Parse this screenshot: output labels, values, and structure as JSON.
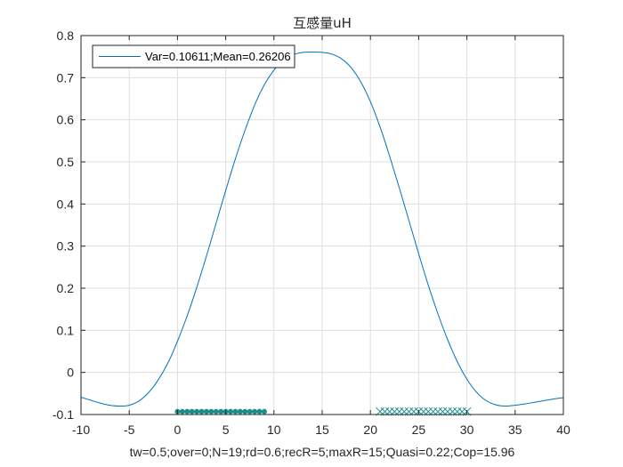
{
  "chart_data": {
    "type": "line",
    "title": "互感量uH",
    "xlabel": "tw=0.5;over=0;N=19;rd=0.6;recR=5;maxR=15;Quasi=0.22;Cop=15.96",
    "ylabel": "",
    "xlim": [
      -10,
      40
    ],
    "ylim": [
      -0.1,
      0.8
    ],
    "xticks": [
      "-10",
      "-5",
      "0",
      "5",
      "10",
      "15",
      "20",
      "25",
      "30",
      "35",
      "40"
    ],
    "yticks": [
      "-0.1",
      "0",
      "0.1",
      "0.2",
      "0.3",
      "0.4",
      "0.5",
      "0.6",
      "0.7",
      "0.8"
    ],
    "grid": true,
    "legend_position": "top-left",
    "series": [
      {
        "name": "Var=0.10611;Mean=0.26206",
        "color": "#0072BD",
        "x": [
          -10,
          -9,
          -8,
          -7,
          -6,
          -5,
          -4,
          -3,
          -2,
          -1,
          0,
          1,
          2,
          3,
          4,
          5,
          6,
          7,
          8,
          9,
          10,
          11,
          12,
          13,
          14,
          15,
          16,
          17,
          18,
          19,
          20,
          21,
          22,
          23,
          24,
          25,
          26,
          27,
          28,
          29,
          30,
          31,
          32,
          33,
          34,
          35,
          36,
          37,
          38,
          39,
          40
        ],
        "y": [
          -0.059,
          -0.066,
          -0.073,
          -0.078,
          -0.08,
          -0.078,
          -0.068,
          -0.048,
          -0.018,
          0.022,
          0.074,
          0.134,
          0.202,
          0.276,
          0.354,
          0.432,
          0.507,
          0.575,
          0.635,
          0.683,
          0.718,
          0.742,
          0.755,
          0.76,
          0.761,
          0.76,
          0.756,
          0.745,
          0.724,
          0.69,
          0.643,
          0.583,
          0.513,
          0.438,
          0.36,
          0.282,
          0.207,
          0.139,
          0.078,
          0.026,
          -0.016,
          -0.047,
          -0.067,
          -0.077,
          -0.08,
          -0.078,
          -0.075,
          -0.071,
          -0.067,
          -0.063,
          -0.06
        ]
      }
    ],
    "markers": [
      {
        "shape": "dot",
        "color": "#1A8F8A",
        "y": -0.093,
        "x": [
          0,
          0.5,
          1,
          1.5,
          2,
          2.5,
          3,
          3.5,
          4,
          4.5,
          5,
          5.5,
          6,
          6.5,
          7,
          7.5,
          8,
          8.5,
          9
        ]
      },
      {
        "shape": "x",
        "color": "#1A8F8A",
        "y": -0.093,
        "x": [
          21,
          21.5,
          22,
          22.5,
          23,
          23.5,
          24,
          24.5,
          25,
          25.5,
          26,
          26.5,
          27,
          27.5,
          28,
          28.5,
          29,
          29.5,
          30
        ]
      }
    ]
  }
}
